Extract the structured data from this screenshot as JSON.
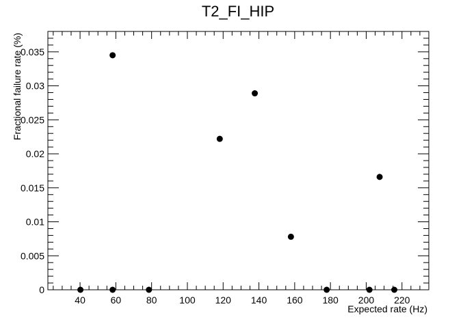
{
  "chart_data": {
    "type": "scatter",
    "title": "T2_FI_HIP",
    "xlabel": "Expected rate (Hz)",
    "ylabel": "Fractional failure rate (%)",
    "xlim": [
      22,
      235
    ],
    "ylim": [
      0,
      0.038
    ],
    "x_ticks": [
      40,
      60,
      80,
      100,
      120,
      140,
      160,
      180,
      200,
      220
    ],
    "x_tick_labels": [
      "40",
      "60",
      "80",
      "100",
      "120",
      "140",
      "160",
      "180",
      "200",
      "220"
    ],
    "y_ticks": [
      0,
      0.005,
      0.01,
      0.015,
      0.02,
      0.025,
      0.03,
      0.035
    ],
    "y_tick_labels": [
      "0",
      "0.005",
      "0.01",
      "0.015",
      "0.02",
      "0.025",
      "0.03",
      "0.035"
    ],
    "grid": false,
    "legend": "none",
    "marker_color": "#000000",
    "series": [
      {
        "points": [
          {
            "x": 40.2,
            "y": 0
          },
          {
            "x": 58.2,
            "y": 0.0345
          },
          {
            "x": 58.2,
            "y": 0
          },
          {
            "x": 78.5,
            "y": 0
          },
          {
            "x": 118.1,
            "y": 0.0222
          },
          {
            "x": 137.7,
            "y": 0.0289
          },
          {
            "x": 157.9,
            "y": 0.0078
          },
          {
            "x": 177.9,
            "y": 0
          },
          {
            "x": 201.8,
            "y": 0
          },
          {
            "x": 207.5,
            "y": 0.0166
          },
          {
            "x": 215.7,
            "y": 0
          }
        ]
      }
    ]
  }
}
